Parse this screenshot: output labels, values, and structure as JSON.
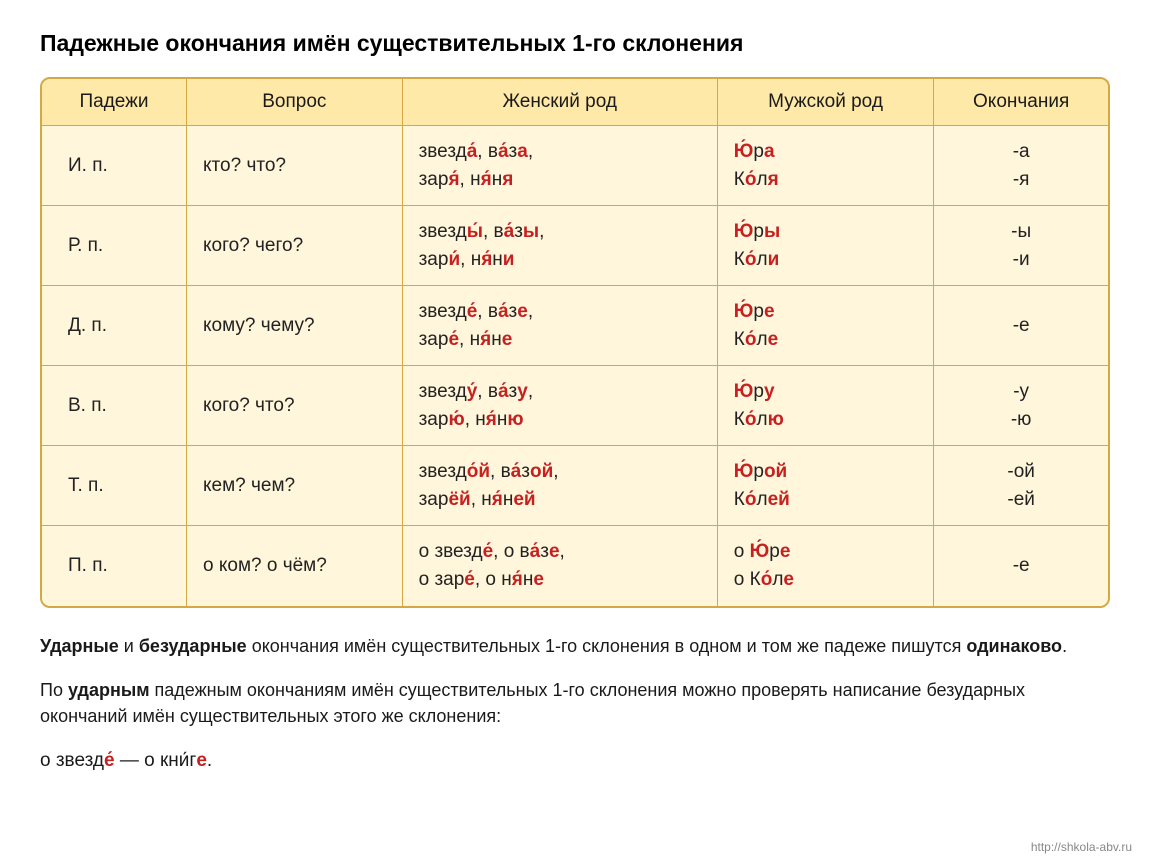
{
  "title": "Падежные окончания имён существительных 1-го склонения",
  "headers": [
    "Падежи",
    "Вопрос",
    "Женский род",
    "Мужской род",
    "Окончания"
  ],
  "rows": [
    {
      "case": "И. п.",
      "q": "кто? что?",
      "fem": "звезд|а́|, в|а́|з|а|,<br>зар|я́|, н|я́|н|я|",
      "masc": "|Ю́|р|а|<br>К|о́|л|я|",
      "end": "-а<br>-я"
    },
    {
      "case": "Р. п.",
      "q": "кого? чего?",
      "fem": "звезд|ы́|, в|а́|з|ы|,<br>зар|и́|, н|я́|н|и|",
      "masc": "|Ю́|р|ы|<br>К|о́|л|и|",
      "end": "-ы<br>-и"
    },
    {
      "case": "Д. п.",
      "q": "кому? чему?",
      "fem": "звезд|е́|, в|а́|з|е|,<br>зар|е́|, н|я́|н|е|",
      "masc": "|Ю́|р|е|<br>К|о́|л|е|",
      "end": "-е"
    },
    {
      "case": "В. п.",
      "q": "кого? что?",
      "fem": "звезд|у́|, в|а́|з|у|,<br>зар|ю́|, н|я́|н|ю|",
      "masc": "|Ю́|р|у|<br>К|о́|л|ю|",
      "end": "-у<br>-ю"
    },
    {
      "case": "Т. п.",
      "q": "кем? чем?",
      "fem": "звезд|о́й|, в|а́|з|ой|,<br>зар|ёй|, н|я́|н|ей|",
      "masc": "|Ю́|р|ой|<br>К|о́|л|ей|",
      "end": "-ой<br>-ей"
    },
    {
      "case": "П. п.",
      "q": "о ком? о чём?",
      "fem": "о звезд|е́|, о в|а́|з|е|,<br>о зар|е́|, о н|я́|н|е|",
      "masc": "о |Ю́|р|е|<br>о К|о́|л|е|",
      "end": "-е"
    }
  ],
  "note1_a": "Ударные",
  "note1_b": " и ",
  "note1_c": "безударные",
  "note1_d": " окончания имён существительных 1-го склонения в одном и том же падеже пишутся ",
  "note1_e": "одинаково",
  "note1_f": ".",
  "note2_a": "По ",
  "note2_b": "ударным",
  "note2_c": " падежным окончаниям имён существительных 1-го склонения можно проверять написание безударных окончаний имён существительных этого же склонения:",
  "example_a": "о звезд",
  "example_b": "е́",
  "example_c": " — о кн",
  "example_d": "и́",
  "example_e": "г",
  "example_f": "е",
  "example_g": ".",
  "watermark": "http://shkola-abv.ru",
  "style": {
    "header_bg": "#ffe9a8",
    "cell_bg": "#fff6db",
    "border_color": "#d4a843",
    "highlight_color": "#c62020",
    "title_fontsize": 23,
    "cell_fontsize": 19,
    "note_fontsize": 18
  }
}
